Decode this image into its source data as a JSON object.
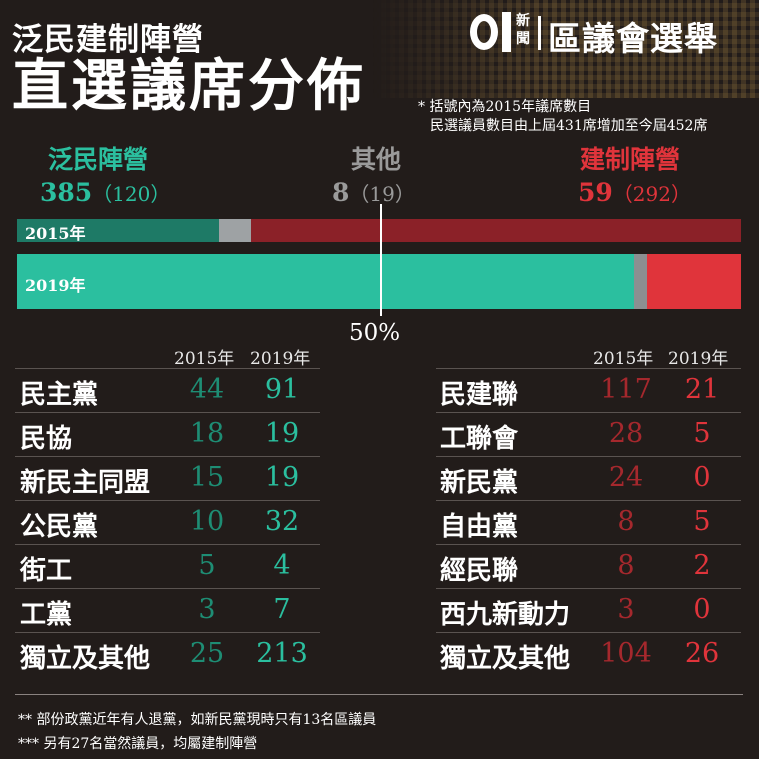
{
  "title_line1": "泛民建制陣營",
  "title_line2": "直選議席分佈",
  "logo": {
    "news_label": "新聞",
    "title": "區議會選舉"
  },
  "notes": [
    "* 括號內為2015年議席數目",
    "民選議員數目由上屆431席增加至今屆452席"
  ],
  "camps": {
    "pan_democrat": {
      "name": "泛民陣營",
      "seats_2019": "385",
      "seats_2015": "（120）",
      "color": "#2bbf9f"
    },
    "other": {
      "name": "其他",
      "seats_2019": "8",
      "seats_2015": "（19）",
      "color": "#9a9a9a"
    },
    "pro_establishment": {
      "name": "建制陣營",
      "seats_2019": "59",
      "seats_2015": "（292）",
      "color": "#e0343b"
    }
  },
  "chart_data": {
    "type": "bar",
    "orientation": "horizontal-stacked",
    "categories": [
      "2015年",
      "2019年"
    ],
    "series": [
      {
        "name": "泛民陣營",
        "values": [
          120,
          385
        ],
        "colors": [
          "#1e7a66",
          "#2bbf9f"
        ]
      },
      {
        "name": "其他",
        "values": [
          19,
          8
        ],
        "colors": [
          "#9ea2a4",
          "#8c8f91"
        ]
      },
      {
        "name": "建制陣營",
        "values": [
          292,
          59
        ],
        "colors": [
          "#8b2128",
          "#e0343b"
        ]
      }
    ],
    "marker_label": "50%",
    "marker_value": 0.5
  },
  "tables": {
    "year_headers": [
      "2015年",
      "2019年"
    ],
    "pan_democrat": [
      {
        "party": "民主黨",
        "y2015": "44",
        "y2019": "91"
      },
      {
        "party": "民協",
        "y2015": "18",
        "y2019": "19"
      },
      {
        "party": "新民主同盟",
        "y2015": "15",
        "y2019": "19"
      },
      {
        "party": "公民黨",
        "y2015": "10",
        "y2019": "32"
      },
      {
        "party": "街工",
        "y2015": "5",
        "y2019": "4"
      },
      {
        "party": "工黨",
        "y2015": "3",
        "y2019": "7"
      },
      {
        "party": "獨立及其他",
        "y2015": "25",
        "y2019": "213"
      }
    ],
    "pro_establishment": [
      {
        "party": "民建聯",
        "y2015": "117",
        "y2019": "21"
      },
      {
        "party": "工聯會",
        "y2015": "28",
        "y2019": "5"
      },
      {
        "party": "新民黨",
        "y2015": "24",
        "y2019": "0"
      },
      {
        "party": "自由黨",
        "y2015": "8",
        "y2019": "5"
      },
      {
        "party": "經民聯",
        "y2015": "8",
        "y2019": "2"
      },
      {
        "party": "西九新動力",
        "y2015": "3",
        "y2019": "0"
      },
      {
        "party": "獨立及其他",
        "y2015": "104",
        "y2019": "26"
      }
    ]
  },
  "footnotes": [
    "** 部份政黨近年有人退黨，如新民黨現時只有13名區議員",
    "*** 另有27名當然議員，均屬建制陣營"
  ]
}
